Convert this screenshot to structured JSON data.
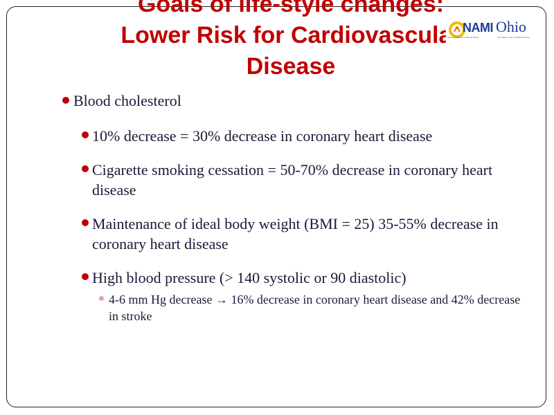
{
  "slide": {
    "title_lines": [
      "Goals of life-style changes:",
      "Lower Risk for Cardiovascular",
      "Disease"
    ],
    "logo": {
      "name": "NAMI",
      "state": "Ohio",
      "tagline_left": "National Alliance on Mental Illness",
      "tagline_right": "The State's Voice on Mental Illness",
      "icon": "nami-badge-icon"
    },
    "bullets": [
      {
        "level": 1,
        "text": "Blood cholesterol"
      },
      {
        "level": 2,
        "text": "10% decrease = 30% decrease in coronary heart disease"
      },
      {
        "level": 2,
        "text": "Cigarette smoking cessation = 50-70% decrease in coronary heart disease"
      },
      {
        "level": 2,
        "text": "Maintenance of ideal body weight (BMI = 25) 35-55% decrease in coronary heart disease"
      },
      {
        "level": 2,
        "text": "High blood pressure (> 140 systolic or 90 diastolic)"
      },
      {
        "level": 3,
        "text": "4-6 mm Hg decrease → 16% decrease in coronary heart disease and 42% decrease in stroke"
      }
    ],
    "colors": {
      "title": "#c00000",
      "bullet": "#c00000",
      "sub_bullet": "#e6a3a3",
      "text": "#1a1a3a",
      "logo": "#1f3a93"
    }
  }
}
